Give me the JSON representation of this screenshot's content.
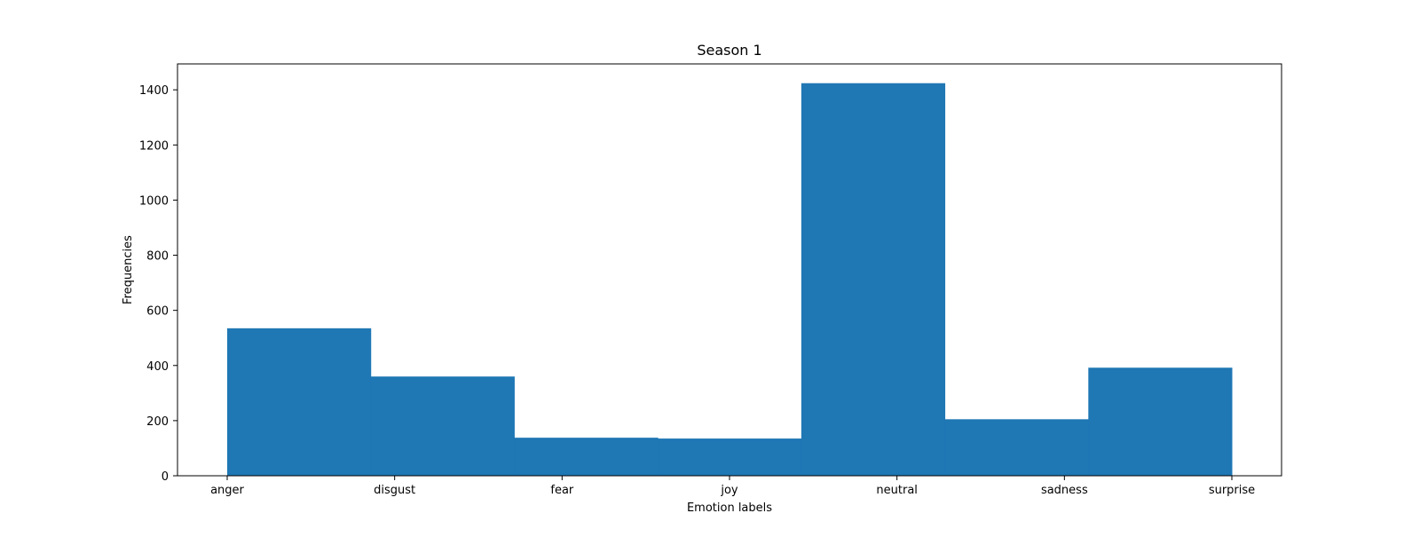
{
  "chart_data": {
    "type": "bar",
    "title": "Season 1",
    "xlabel": "Emotion labels",
    "ylabel": "Frequencies",
    "categories": [
      "anger",
      "disgust",
      "fear",
      "joy",
      "neutral",
      "sadness",
      "surprise"
    ],
    "values": [
      535,
      360,
      138,
      135,
      1424,
      205,
      392
    ],
    "ylim": [
      0,
      1500
    ],
    "yticks": [
      0,
      200,
      400,
      600,
      800,
      1000,
      1200,
      1400
    ],
    "grid": false,
    "bar_color": "#1f77b4"
  }
}
